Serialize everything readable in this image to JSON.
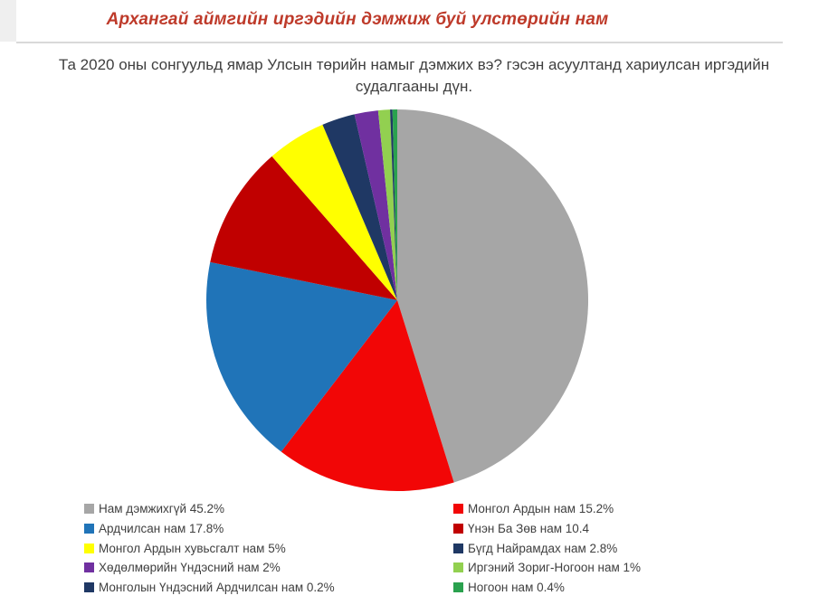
{
  "page": {
    "title": "Архангай аймгийн иргэдийн дэмжиж буй улстөрийн нам",
    "title_color": "#be3a2a",
    "subtitle_line1": "Та 2020 оны сонгуульд ямар Улсын төрийн намыг дэмжих вэ? гэсэн асуултанд хариулсан иргэдийн",
    "subtitle_line2": "судалгааны дүн.",
    "divider_color": "#d9d9d9"
  },
  "chart_data": {
    "type": "pie",
    "title": "",
    "start_angle_deg": 0,
    "direction": "clockwise",
    "legend_position": "bottom",
    "legend_columns": 2,
    "slices": [
      {
        "label": "Нам дэмжихгүй",
        "value": 45.2,
        "display": "Нам дэмжихгүй 45.2%",
        "color": "#a6a6a6"
      },
      {
        "label": "Монгол Ардын нам",
        "value": 15.2,
        "display": "Монгол Ардын нам 15.2%",
        "color": "#f20606"
      },
      {
        "label": "Ардчилсан нам",
        "value": 17.8,
        "display": "Ардчилсан нам 17.8%",
        "color": "#2074b8"
      },
      {
        "label": "Үнэн Ба Зөв нам",
        "value": 10.4,
        "display": "Үнэн Ба Зөв нам 10.4",
        "color": "#c00000"
      },
      {
        "label": "Монгол Ардын хувьсгалт нам",
        "value": 5,
        "display": "Монгол Ардын хувьсгалт нам 5%",
        "color": "#ffff00"
      },
      {
        "label": "Бүгд Найрамдах нам",
        "value": 2.8,
        "display": "Бүгд Найрамдах нам 2.8%",
        "color": "#1f3864"
      },
      {
        "label": "Хөдөлмөрийн Үндэсний нам",
        "value": 2,
        "display": "Хөдөлмөрийн Үндэсний нам 2%",
        "color": "#7030a0"
      },
      {
        "label": "Иргэний Зориг-Ногоон нам",
        "value": 1,
        "display": "Иргэний Зориг-Ногоон нам 1%",
        "color": "#92d050"
      },
      {
        "label": "Монголын Үндэсний Ардчилсан нам",
        "value": 0.2,
        "display": "Монголын Үндэсний Ардчилсан нам 0.2%",
        "color": "#1f3864"
      },
      {
        "label": "Ногоон нам",
        "value": 0.4,
        "display": "Ногоон нам 0.4%",
        "color": "#2aa14e"
      }
    ],
    "legend_left_column_indices": [
      0,
      2,
      4,
      6,
      8
    ],
    "legend_right_column_indices": [
      1,
      3,
      5,
      7,
      9
    ]
  }
}
